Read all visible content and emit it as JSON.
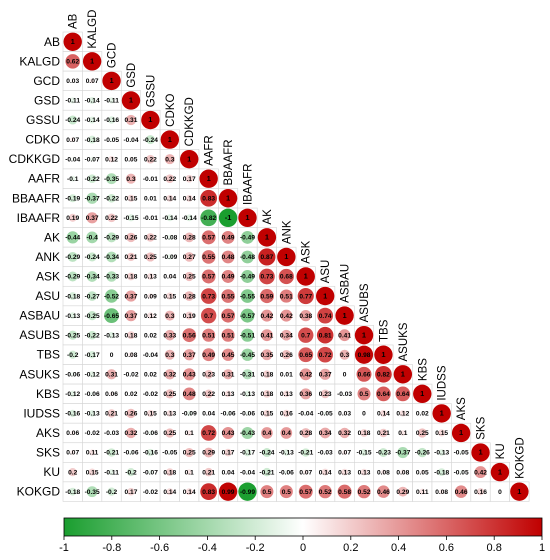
{
  "chart_data": {
    "type": "heatmap",
    "variant": "lower-triangle correlation matrix with sized circles",
    "variables": [
      "AB",
      "KALGD",
      "GCD",
      "GSD",
      "GSSU",
      "CDKO",
      "CDKKGD",
      "AAFR",
      "BBAAFR",
      "IBAAFR",
      "AK",
      "ANK",
      "ASK",
      "ASU",
      "ASBAU",
      "ASUBS",
      "TBS",
      "ASUKS",
      "KBS",
      "IUDSS",
      "AKS",
      "SKS",
      "KU",
      "KOKGD"
    ],
    "matrix": [
      [
        1
      ],
      [
        0.62,
        1
      ],
      [
        0.03,
        0.07,
        1
      ],
      [
        -0.11,
        -0.14,
        -0.11,
        1
      ],
      [
        -0.24,
        -0.14,
        -0.16,
        0.31,
        1
      ],
      [
        0.07,
        -0.18,
        -0.05,
        -0.04,
        -0.24,
        1
      ],
      [
        -0.04,
        -0.07,
        0.12,
        0.05,
        0.22,
        0.3,
        1
      ],
      [
        -0.1,
        -0.22,
        -0.35,
        0.3,
        -0.01,
        0.22,
        0.17,
        1
      ],
      [
        -0.19,
        -0.37,
        -0.22,
        0.15,
        0.01,
        0.14,
        0.14,
        0.83,
        1
      ],
      [
        0.19,
        0.37,
        0.22,
        -0.15,
        -0.01,
        -0.14,
        -0.14,
        -0.82,
        -1,
        1
      ],
      [
        -0.44,
        -0.4,
        -0.29,
        0.26,
        0.22,
        -0.08,
        0.28,
        0.57,
        0.49,
        -0.49,
        1
      ],
      [
        -0.29,
        -0.24,
        -0.34,
        0.21,
        0.25,
        -0.09,
        0.27,
        0.55,
        0.48,
        -0.48,
        0.87,
        1
      ],
      [
        -0.29,
        -0.34,
        -0.33,
        0.18,
        0.13,
        0.04,
        0.25,
        0.57,
        0.49,
        -0.49,
        0.73,
        0.68,
        1
      ],
      [
        -0.18,
        -0.27,
        -0.52,
        0.37,
        0.09,
        0.15,
        0.28,
        0.73,
        0.55,
        -0.55,
        0.59,
        0.51,
        0.77,
        1
      ],
      [
        -0.13,
        -0.25,
        -0.65,
        0.37,
        0.12,
        0.3,
        0.19,
        0.7,
        0.57,
        -0.57,
        0.42,
        0.42,
        0.38,
        0.74,
        1
      ],
      [
        -0.25,
        -0.22,
        -0.13,
        0.18,
        0.02,
        0.33,
        0.56,
        0.51,
        0.51,
        -0.51,
        0.41,
        0.34,
        0.7,
        0.81,
        0.41,
        1
      ],
      [
        -0.2,
        -0.17,
        0,
        0.08,
        -0.04,
        0.3,
        0.37,
        0.49,
        0.45,
        -0.45,
        0.35,
        0.26,
        0.65,
        0.72,
        0.3,
        0.98,
        1
      ],
      [
        -0.06,
        -0.12,
        0.31,
        -0.02,
        0.02,
        0.32,
        0.43,
        0.23,
        0.31,
        -0.31,
        0.18,
        0.01,
        0.42,
        0.37,
        0,
        0.66,
        0.82,
        1
      ],
      [
        -0.12,
        -0.06,
        0.06,
        0.02,
        -0.02,
        0.25,
        0.48,
        0.22,
        0.13,
        -0.13,
        0.18,
        0.13,
        0.36,
        0.23,
        -0.03,
        0.5,
        0.64,
        0.64,
        1
      ],
      [
        -0.16,
        -0.13,
        0.21,
        0.26,
        0.15,
        0.13,
        -0.09,
        0.04,
        -0.06,
        -0.06,
        0.15,
        0.16,
        -0.04,
        -0.05,
        0.03,
        0,
        0.14,
        0.12,
        0.02,
        1
      ],
      [
        0.06,
        -0.02,
        -0.03,
        0.32,
        -0.06,
        0.25,
        0.1,
        0.72,
        0.43,
        -0.43,
        0.4,
        0.4,
        0.28,
        0.34,
        0.32,
        0.18,
        0.21,
        0.1,
        0.25,
        0.15,
        1
      ],
      [
        0.07,
        0.11,
        -0.21,
        -0.06,
        -0.16,
        -0.05,
        0.25,
        0.29,
        0.17,
        -0.17,
        -0.24,
        -0.13,
        -0.21,
        -0.03,
        0.07,
        -0.15,
        -0.23,
        -0.37,
        -0.26,
        -0.13,
        -0.05,
        1
      ],
      [
        0.2,
        0.15,
        -0.11,
        -0.2,
        -0.07,
        0.18,
        0.1,
        0.21,
        0.04,
        -0.04,
        -0.21,
        -0.06,
        0.07,
        0.14,
        0.13,
        0.13,
        0.08,
        0.08,
        0.05,
        -0.18,
        -0.05,
        0.42,
        1
      ],
      [
        -0.18,
        -0.35,
        -0.2,
        0.17,
        -0.02,
        0.14,
        0.14,
        0.83,
        0.99,
        -0.99,
        0.5,
        0.5,
        0.57,
        0.52,
        0.58,
        0.52,
        0.46,
        0.29,
        0.11,
        0.08,
        0.46,
        0.16,
        0,
        1
      ]
    ],
    "colorbar": {
      "min": -1,
      "max": 1,
      "ticks": [
        "-1",
        "-0.8",
        "-0.6",
        "-0.4",
        "-0.2",
        "0",
        "0.2",
        "0.4",
        "0.6",
        "0.8",
        "1"
      ],
      "colors": {
        "negative": "#1a9e2f",
        "zero": "#ffffff",
        "positive": "#c00000"
      }
    },
    "grid": true,
    "legend": "bottom"
  }
}
